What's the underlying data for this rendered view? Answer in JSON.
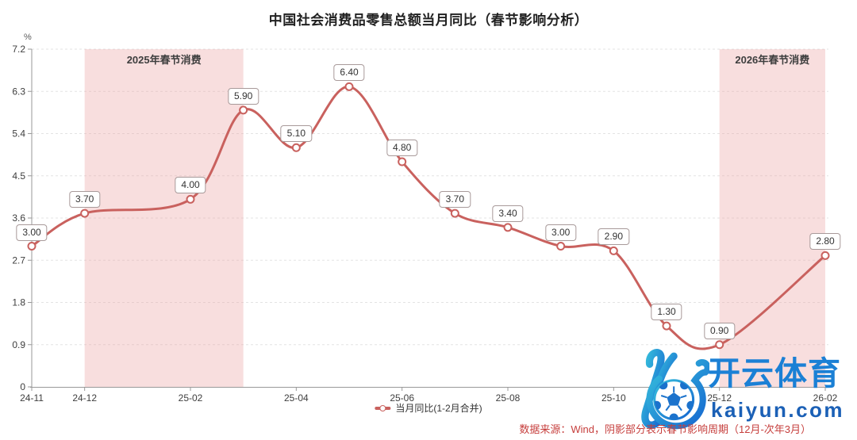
{
  "title": "中国社会消费品零售总额当月同比（春节影响分析）",
  "y_axis_unit": "%",
  "legend": {
    "label": "当月同比(1-2月合并)"
  },
  "source_note": "数据来源：Wind，阴影部分表示春节影响周期（12月-次年3月）",
  "watermark": {
    "brand": "开云体育",
    "domain": "kaiyun.com",
    "logo": "kaiyun-k-soccer-logo"
  },
  "colors": {
    "line": "#c9615e",
    "marker_fill": "#ffffff",
    "region_fill": "rgba(235,160,160,0.35)",
    "region_label": "#d66660",
    "grid": "#e3e3e3",
    "axis": "#999999",
    "tick_label": "#3e3e3e",
    "label_box_border": "#a89a9a",
    "source_text": "#c63e3c",
    "watermark_blue": "#1b80d5",
    "watermark_dark_blue": "#1b60b6"
  },
  "chart_data": {
    "type": "line",
    "title": "中国社会消费品零售总额当月同比（春节影响分析）",
    "xlabel": "",
    "ylabel": "%",
    "ylim": [
      0,
      7.2
    ],
    "grid": "horizontal-dashed",
    "legend_position": "bottom-center",
    "total_slots": 16,
    "series": [
      {
        "name": "当月同比(1-2月合并)",
        "points": [
          {
            "month": "24-11",
            "slot": 0,
            "value": 3.0,
            "label": "3.00"
          },
          {
            "month": "24-12",
            "slot": 1,
            "value": 3.7,
            "label": "3.70"
          },
          {
            "month": "25-02",
            "slot": 3,
            "value": 4.0,
            "label": "4.00"
          },
          {
            "month": "25-03",
            "slot": 4,
            "value": 5.9,
            "label": "5.90"
          },
          {
            "month": "25-04",
            "slot": 5,
            "value": 5.1,
            "label": "5.10"
          },
          {
            "month": "25-05",
            "slot": 6,
            "value": 6.4,
            "label": "6.40"
          },
          {
            "month": "25-06",
            "slot": 7,
            "value": 4.8,
            "label": "4.80"
          },
          {
            "month": "25-07",
            "slot": 8,
            "value": 3.7,
            "label": "3.70"
          },
          {
            "month": "25-08",
            "slot": 9,
            "value": 3.4,
            "label": "3.40"
          },
          {
            "month": "25-09",
            "slot": 10,
            "value": 3.0,
            "label": "3.00"
          },
          {
            "month": "25-10",
            "slot": 11,
            "value": 2.9,
            "label": "2.90"
          },
          {
            "month": "25-11",
            "slot": 12,
            "value": 1.3,
            "label": "1.30"
          },
          {
            "month": "25-12",
            "slot": 13,
            "value": 0.9,
            "label": "0.90"
          },
          {
            "month": "26-02",
            "slot": 15,
            "value": 2.8,
            "label": "2.80"
          }
        ]
      }
    ],
    "x_ticks": [
      {
        "label": "24-11",
        "slot": 0
      },
      {
        "label": "24-12",
        "slot": 1
      },
      {
        "label": "25-02",
        "slot": 3
      },
      {
        "label": "25-04",
        "slot": 5
      },
      {
        "label": "25-06",
        "slot": 7
      },
      {
        "label": "25-08",
        "slot": 9
      },
      {
        "label": "25-10",
        "slot": 11
      },
      {
        "label": "25-12",
        "slot": 13
      },
      {
        "label": "26-02",
        "slot": 15
      }
    ],
    "y_ticks": [
      {
        "value": 7.2,
        "label": "7.2"
      },
      {
        "value": 6.3,
        "label": "6.3"
      },
      {
        "value": 5.4,
        "label": "5.4"
      },
      {
        "value": 4.5,
        "label": "4.5"
      },
      {
        "value": 3.6,
        "label": "3.6"
      },
      {
        "value": 2.7,
        "label": "2.7"
      },
      {
        "value": 1.8,
        "label": "1.8"
      },
      {
        "value": 0.9,
        "label": "0.9"
      },
      {
        "value": 0,
        "label": "0"
      }
    ],
    "regions": [
      {
        "label": "2025年春节消费",
        "from_slot": 1,
        "to_slot": 4
      },
      {
        "label": "2026年春节消费",
        "from_slot": 13,
        "to_slot": 15
      }
    ]
  }
}
